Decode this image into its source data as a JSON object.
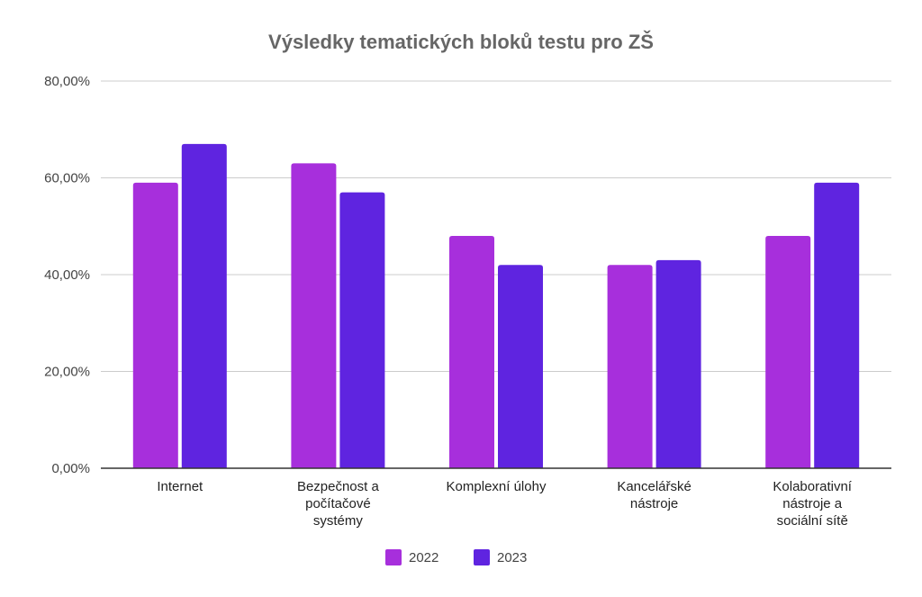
{
  "chart_data": {
    "type": "bar",
    "title": "Výsledky tematických bloků testu pro ZŠ",
    "xlabel": "",
    "ylabel": "",
    "categories": [
      [
        "Internet"
      ],
      [
        "Bezpečnost a",
        "počítačové",
        "systémy"
      ],
      [
        "Komplexní úlohy"
      ],
      [
        "Kancelářské",
        "nástroje"
      ],
      [
        "Kolaborativní",
        "nástroje a",
        "sociální sítě"
      ]
    ],
    "series": [
      {
        "name": "2022",
        "color": "#a72fdc",
        "values": [
          59,
          63,
          48,
          42,
          48
        ]
      },
      {
        "name": "2023",
        "color": "#5f24e0",
        "values": [
          67,
          57,
          42,
          43,
          59
        ]
      }
    ],
    "ylim": [
      0,
      80
    ],
    "yticks": [
      {
        "value": 0,
        "label": "0,00%"
      },
      {
        "value": 20,
        "label": "20,00%"
      },
      {
        "value": 40,
        "label": "40,00%"
      },
      {
        "value": 60,
        "label": "60,00%"
      },
      {
        "value": 80,
        "label": "80,00%"
      }
    ],
    "grid": true,
    "legend_position": "bottom"
  }
}
